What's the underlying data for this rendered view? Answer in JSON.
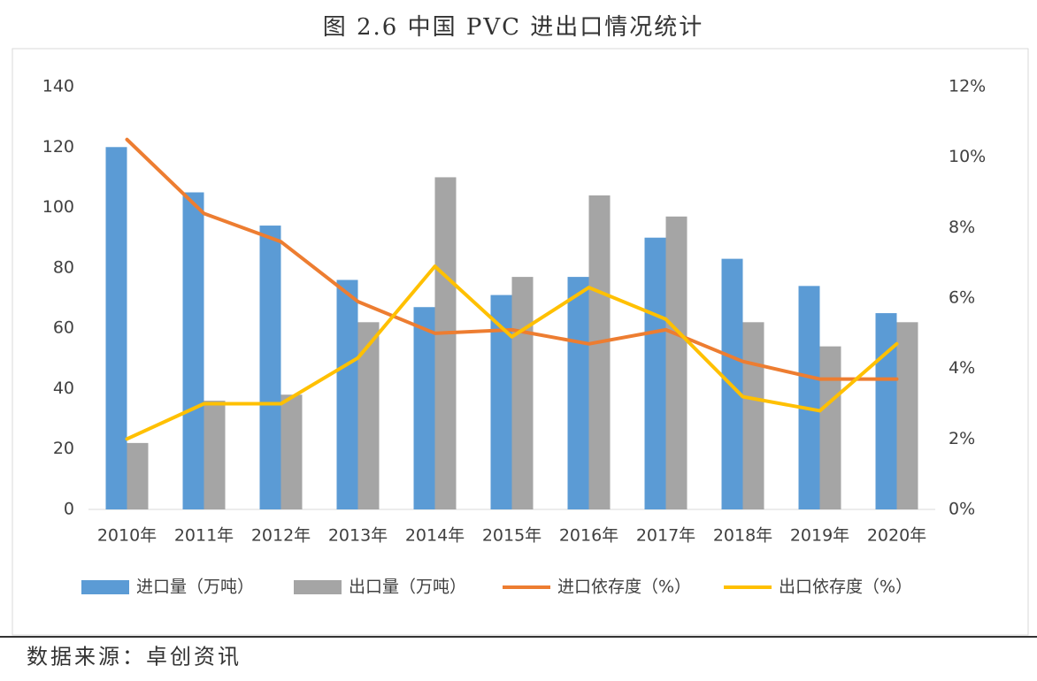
{
  "chart_data": {
    "type": "combo",
    "title": "图 2.6  中国 PVC 进出口情况统计",
    "source": "数据来源：卓创资讯",
    "categories": [
      "2010年",
      "2011年",
      "2012年",
      "2013年",
      "2014年",
      "2015年",
      "2016年",
      "2017年",
      "2018年",
      "2019年",
      "2020年"
    ],
    "series": [
      {
        "name": "进口量（万吨）",
        "type": "bar",
        "color": "#5b9bd5",
        "values": [
          120,
          105,
          94,
          76,
          67,
          71,
          77,
          90,
          83,
          74,
          65
        ]
      },
      {
        "name": "出口量（万吨）",
        "type": "bar",
        "color": "#a5a5a5",
        "values": [
          22,
          36,
          38,
          62,
          110,
          77,
          104,
          97,
          62,
          54,
          62
        ]
      },
      {
        "name": "进口依存度（%）",
        "type": "line",
        "axis": "y2",
        "color": "#ed7d31",
        "values": [
          10.5,
          8.4,
          7.6,
          5.9,
          5.0,
          5.1,
          4.7,
          5.1,
          4.2,
          3.7,
          3.7
        ]
      },
      {
        "name": "出口依存度（%）",
        "type": "line",
        "axis": "y2",
        "color": "#ffc000",
        "values": [
          2.0,
          3.0,
          3.0,
          4.3,
          6.9,
          4.9,
          6.3,
          5.4,
          3.2,
          2.8,
          4.7
        ]
      }
    ],
    "ylim": [
      0,
      140
    ],
    "yticks": [
      0,
      20,
      40,
      60,
      80,
      100,
      120,
      140
    ],
    "y2lim": [
      0,
      12
    ],
    "y2ticks": [
      {
        "value": 0,
        "label": "0%"
      },
      {
        "value": 2,
        "label": "2%"
      },
      {
        "value": 4,
        "label": "4%"
      },
      {
        "value": 6,
        "label": "6%"
      },
      {
        "value": 8,
        "label": "8%"
      },
      {
        "value": 10,
        "label": "10%"
      },
      {
        "value": 12,
        "label": "12%"
      }
    ],
    "legend": "bottom"
  }
}
